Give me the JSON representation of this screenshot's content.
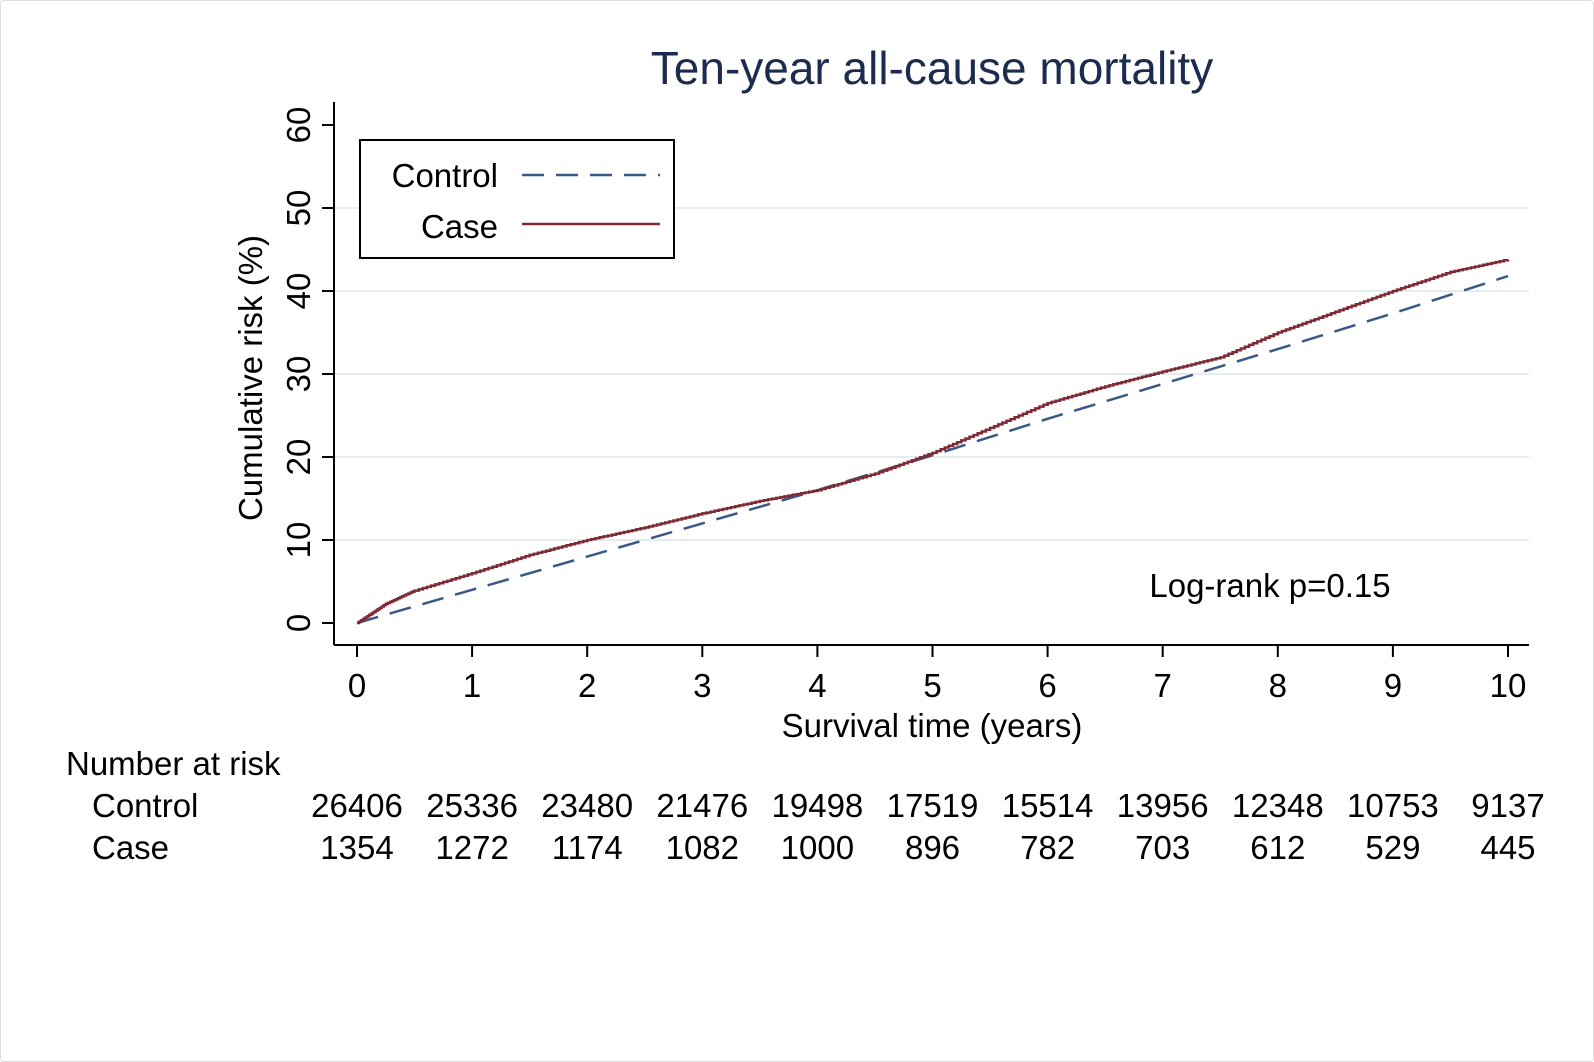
{
  "chart_data": {
    "type": "line",
    "title": "Ten-year all-cause mortality",
    "xlabel": "Survival time (years)",
    "ylabel": "Cumulative risk (%)",
    "xlim": [
      0,
      10
    ],
    "ylim": [
      0,
      60
    ],
    "x_ticks": [
      "0",
      "1",
      "2",
      "3",
      "4",
      "5",
      "6",
      "7",
      "8",
      "9",
      "10"
    ],
    "y_ticks": [
      "0",
      "10",
      "20",
      "30",
      "40",
      "50",
      "60"
    ],
    "grid": "horizontal",
    "legend_position": "top-left",
    "annotation": "Log-rank p=0.15",
    "series": [
      {
        "name": "Control",
        "color": "#3a5a85",
        "style": "dashed",
        "x": [
          0,
          1,
          2,
          3,
          4,
          5,
          6,
          7,
          8,
          9,
          10
        ],
        "y": [
          0,
          4.0,
          8.0,
          12.0,
          16.0,
          20.2,
          24.6,
          28.8,
          33.0,
          37.3,
          41.8
        ]
      },
      {
        "name": "Case",
        "color": "#7e2a35",
        "style": "solid",
        "x": [
          0,
          0.25,
          0.5,
          1,
          1.5,
          2,
          2.5,
          3,
          3.5,
          4,
          4.5,
          5,
          5.5,
          6,
          6.5,
          7,
          7.5,
          8,
          8.5,
          9,
          9.5,
          10
        ],
        "y": [
          0,
          2.3,
          3.9,
          6.0,
          8.2,
          10.0,
          11.5,
          13.2,
          14.7,
          16.0,
          18.0,
          20.5,
          23.5,
          26.5,
          28.5,
          30.3,
          32.0,
          35.0,
          37.5,
          40.0,
          42.3,
          43.8
        ]
      }
    ],
    "risk_table": {
      "header": "Number at risk",
      "rows": [
        {
          "label": "Control",
          "values": [
            "26406",
            "25336",
            "23480",
            "21476",
            "19498",
            "17519",
            "15514",
            "13956",
            "12348",
            "10753",
            "9137"
          ]
        },
        {
          "label": "Case",
          "values": [
            "1354",
            "1272",
            "1174",
            "1082",
            "1000",
            "896",
            "782",
            "703",
            "612",
            "529",
            "445"
          ]
        }
      ]
    }
  }
}
